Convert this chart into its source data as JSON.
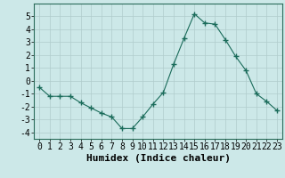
{
  "x": [
    0,
    1,
    2,
    3,
    4,
    5,
    6,
    7,
    8,
    9,
    10,
    11,
    12,
    13,
    14,
    15,
    16,
    17,
    18,
    19,
    20,
    21,
    22,
    23
  ],
  "y": [
    -0.5,
    -1.2,
    -1.2,
    -1.2,
    -1.7,
    -2.1,
    -2.5,
    -2.8,
    -3.7,
    -3.7,
    -2.8,
    -1.8,
    -0.9,
    1.3,
    3.3,
    5.2,
    4.5,
    4.4,
    3.2,
    1.9,
    0.8,
    -1.0,
    -1.6,
    -2.3
  ],
  "line_color": "#1a6b5a",
  "marker": "+",
  "marker_size": 4,
  "bg_color": "#cce8e8",
  "grid_color": "#b0cccc",
  "xlabel": "Humidex (Indice chaleur)",
  "xlim": [
    -0.5,
    23.5
  ],
  "ylim": [
    -4.5,
    6.0
  ],
  "yticks": [
    -4,
    -3,
    -2,
    -1,
    0,
    1,
    2,
    3,
    4,
    5
  ],
  "xticks": [
    0,
    1,
    2,
    3,
    4,
    5,
    6,
    7,
    8,
    9,
    10,
    11,
    12,
    13,
    14,
    15,
    16,
    17,
    18,
    19,
    20,
    21,
    22,
    23
  ],
  "tick_fontsize": 7,
  "xlabel_fontsize": 8
}
